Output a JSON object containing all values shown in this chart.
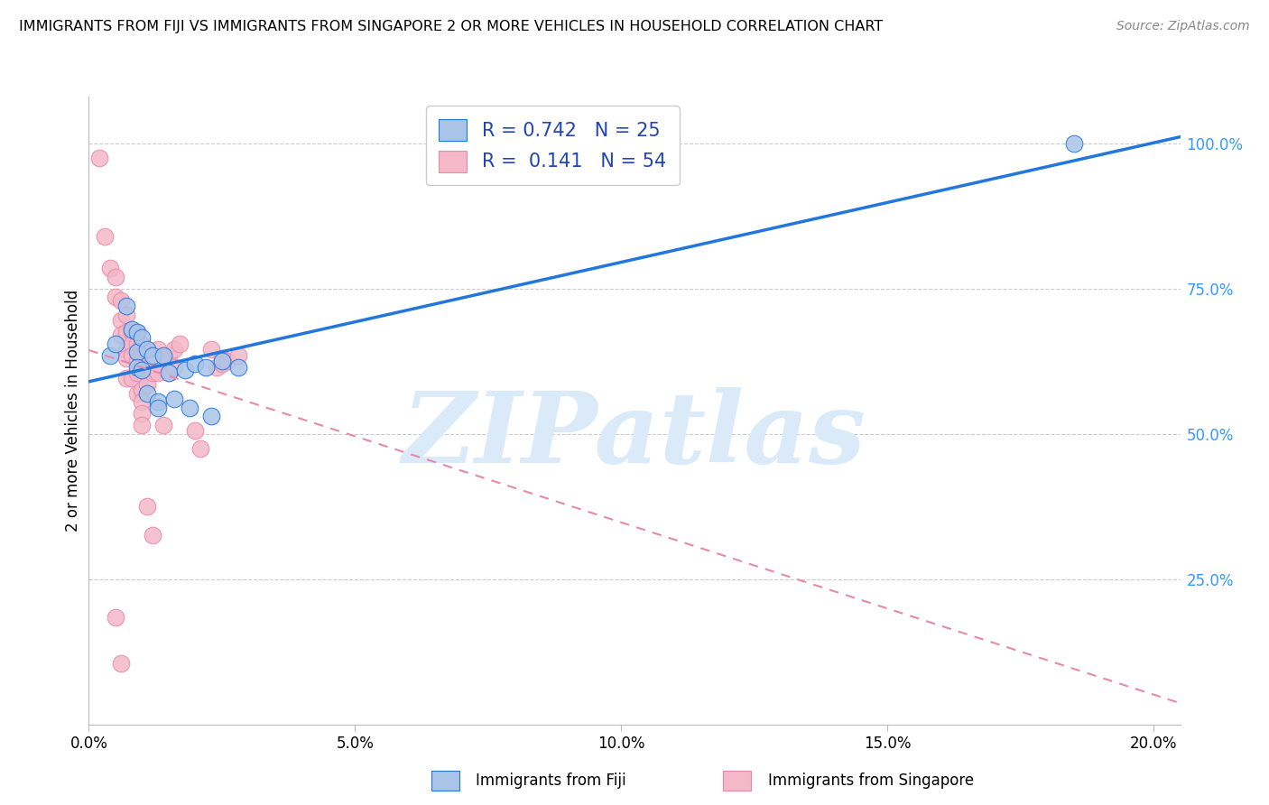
{
  "title": "IMMIGRANTS FROM FIJI VS IMMIGRANTS FROM SINGAPORE 2 OR MORE VEHICLES IN HOUSEHOLD CORRELATION CHART",
  "source": "Source: ZipAtlas.com",
  "ylabel_left": "2 or more Vehicles in Household",
  "ylabel_right_labels": [
    "25.0%",
    "50.0%",
    "75.0%",
    "100.0%"
  ],
  "ylabel_right_values": [
    0.25,
    0.5,
    0.75,
    1.0
  ],
  "xaxis_labels": [
    "0.0%",
    "5.0%",
    "10.0%",
    "15.0%",
    "20.0%"
  ],
  "xaxis_values": [
    0.0,
    0.05,
    0.1,
    0.15,
    0.2
  ],
  "xlim": [
    0.0,
    0.205
  ],
  "ylim": [
    0.0,
    1.08
  ],
  "fiji_R": 0.742,
  "fiji_N": 25,
  "singapore_R": 0.141,
  "singapore_N": 54,
  "fiji_color": "#aac4e8",
  "singapore_color": "#f4b8c8",
  "fiji_line_color": "#2277dd",
  "singapore_line_color": "#e888aa",
  "legend_labels": [
    "Immigrants from Fiji",
    "Immigrants from Singapore"
  ],
  "watermark_text": "ZIPatlas",
  "watermark_color": "#daeaf8",
  "fiji_x": [
    0.004,
    0.005,
    0.007,
    0.008,
    0.009,
    0.009,
    0.009,
    0.01,
    0.01,
    0.011,
    0.011,
    0.012,
    0.013,
    0.013,
    0.014,
    0.015,
    0.016,
    0.018,
    0.019,
    0.02,
    0.022,
    0.023,
    0.025,
    0.028,
    0.185
  ],
  "fiji_y": [
    0.635,
    0.655,
    0.72,
    0.68,
    0.675,
    0.64,
    0.615,
    0.665,
    0.61,
    0.645,
    0.57,
    0.635,
    0.555,
    0.545,
    0.635,
    0.605,
    0.56,
    0.61,
    0.545,
    0.62,
    0.615,
    0.53,
    0.625,
    0.615,
    1.0
  ],
  "singapore_x": [
    0.002,
    0.003,
    0.004,
    0.005,
    0.005,
    0.006,
    0.006,
    0.006,
    0.007,
    0.007,
    0.007,
    0.007,
    0.007,
    0.008,
    0.008,
    0.008,
    0.008,
    0.009,
    0.009,
    0.009,
    0.009,
    0.009,
    0.01,
    0.01,
    0.01,
    0.01,
    0.01,
    0.01,
    0.01,
    0.011,
    0.011,
    0.011,
    0.012,
    0.012,
    0.013,
    0.013,
    0.014,
    0.015,
    0.015,
    0.016,
    0.016,
    0.017,
    0.02,
    0.021,
    0.023,
    0.024,
    0.025,
    0.025,
    0.026,
    0.028,
    0.005,
    0.006,
    0.011,
    0.012
  ],
  "singapore_y": [
    0.975,
    0.84,
    0.785,
    0.77,
    0.735,
    0.73,
    0.695,
    0.67,
    0.705,
    0.675,
    0.645,
    0.63,
    0.595,
    0.675,
    0.655,
    0.635,
    0.595,
    0.675,
    0.655,
    0.625,
    0.605,
    0.57,
    0.655,
    0.635,
    0.615,
    0.575,
    0.555,
    0.535,
    0.515,
    0.625,
    0.605,
    0.585,
    0.625,
    0.605,
    0.645,
    0.605,
    0.515,
    0.635,
    0.605,
    0.645,
    0.615,
    0.655,
    0.505,
    0.475,
    0.645,
    0.615,
    0.62,
    0.63,
    0.625,
    0.635,
    0.185,
    0.105,
    0.375,
    0.325
  ]
}
